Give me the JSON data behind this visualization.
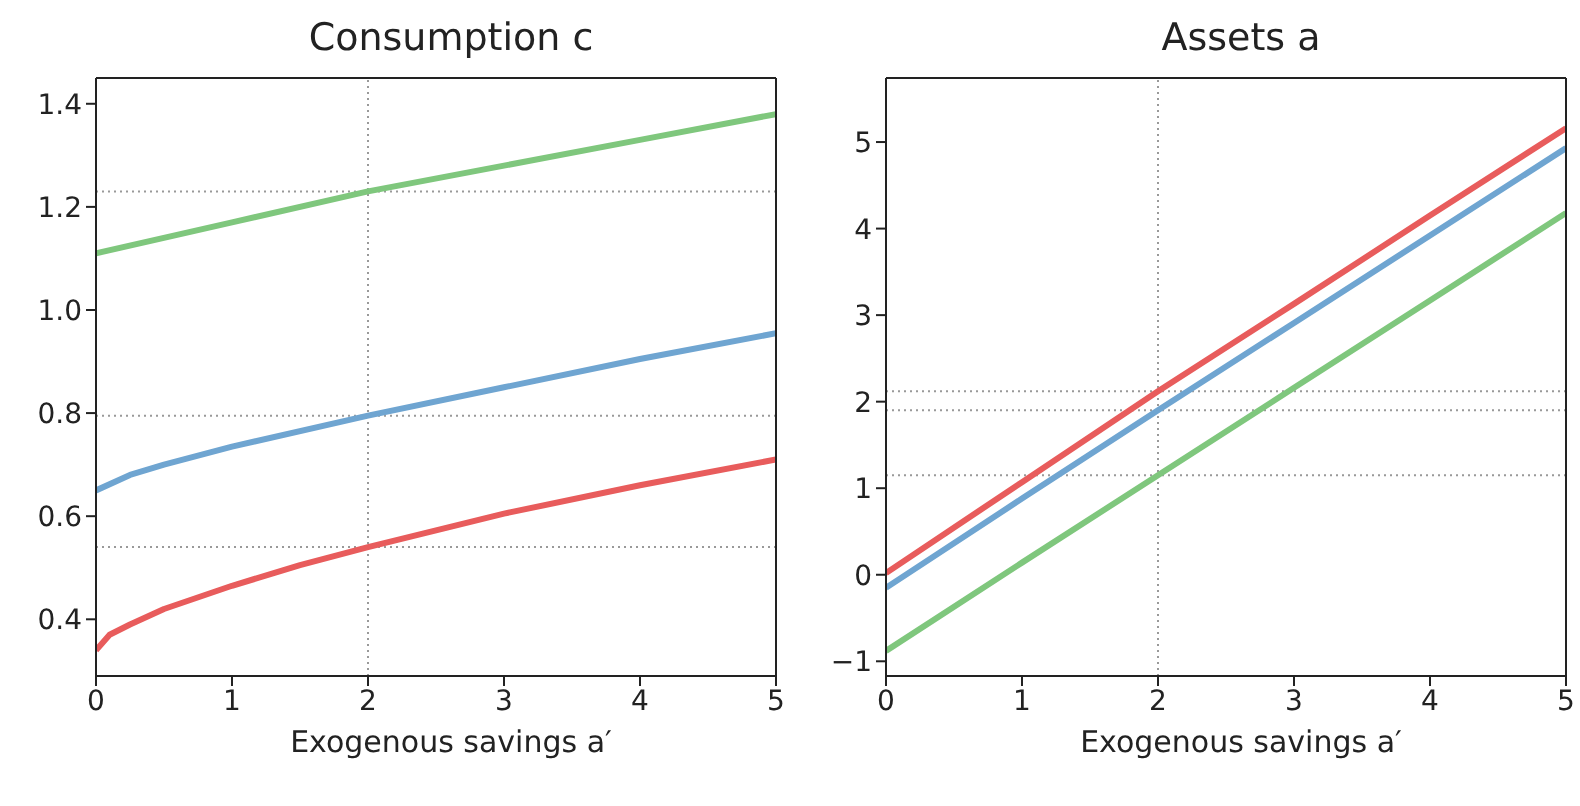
{
  "chart_data": [
    {
      "type": "line",
      "title": "Consumption c",
      "xlabel": "Exogenous savings a′",
      "xlim": [
        0,
        5
      ],
      "xticks": [
        0,
        1,
        2,
        3,
        4,
        5
      ],
      "ylim": [
        0.29,
        1.45
      ],
      "yticks": [
        {
          "value": 0.4,
          "label": "0.4"
        },
        {
          "value": 0.6,
          "label": "0.6"
        },
        {
          "value": 0.8,
          "label": "0.8"
        },
        {
          "value": 1.0,
          "label": "1.0"
        },
        {
          "value": 1.2,
          "label": "1.2"
        },
        {
          "value": 1.4,
          "label": "1.4"
        }
      ],
      "grid": false,
      "marker": "none",
      "line_style": "solid",
      "series": [
        {
          "color": "#7fc77d",
          "x": [
            0,
            1,
            2,
            3,
            4,
            5
          ],
          "values": [
            1.11,
            1.17,
            1.23,
            1.28,
            1.33,
            1.38
          ]
        },
        {
          "color": "#6fa5d1",
          "x": [
            0,
            0.25,
            0.5,
            1,
            2,
            3,
            4,
            5
          ],
          "values": [
            0.65,
            0.68,
            0.7,
            0.735,
            0.795,
            0.85,
            0.905,
            0.955
          ]
        },
        {
          "color": "#e85c5c",
          "x": [
            0,
            0.1,
            0.25,
            0.5,
            1,
            1.5,
            2,
            3,
            4,
            5
          ],
          "values": [
            0.34,
            0.37,
            0.39,
            0.42,
            0.465,
            0.505,
            0.54,
            0.605,
            0.66,
            0.71
          ]
        }
      ],
      "ref_lines": [
        {
          "axis": "x",
          "value": 2,
          "color": "#999999",
          "line_style": "dotted"
        },
        {
          "axis": "y",
          "value": 1.23,
          "color": "#999999",
          "line_style": "dotted"
        },
        {
          "axis": "y",
          "value": 0.795,
          "color": "#999999",
          "line_style": "dotted"
        },
        {
          "axis": "y",
          "value": 0.54,
          "color": "#999999",
          "line_style": "dotted"
        }
      ]
    },
    {
      "type": "line",
      "title": "Assets a",
      "xlabel": "Exogenous savings a′",
      "xlim": [
        0,
        5
      ],
      "xticks": [
        0,
        1,
        2,
        3,
        4,
        5
      ],
      "ylim": [
        -1.17,
        5.74
      ],
      "yticks": [
        {
          "value": -1,
          "label": "−1"
        },
        0,
        1,
        2,
        3,
        4,
        5
      ],
      "grid": false,
      "marker": "none",
      "line_style": "solid",
      "series": [
        {
          "color": "#e85c5c",
          "x": [
            0,
            1,
            2,
            3,
            4,
            5
          ],
          "values": [
            0.02,
            1.07,
            2.12,
            3.13,
            4.15,
            5.16
          ]
        },
        {
          "color": "#6fa5d1",
          "x": [
            0,
            1,
            2,
            3,
            4,
            5
          ],
          "values": [
            -0.15,
            0.88,
            1.9,
            2.91,
            3.92,
            4.93
          ]
        },
        {
          "color": "#7fc77d",
          "x": [
            0,
            1,
            2,
            3,
            4,
            5
          ],
          "values": [
            -0.88,
            0.14,
            1.15,
            2.16,
            3.17,
            4.18
          ]
        }
      ],
      "ref_lines": [
        {
          "axis": "x",
          "value": 2,
          "color": "#999999",
          "line_style": "dotted"
        },
        {
          "axis": "y",
          "value": 2.12,
          "color": "#999999",
          "line_style": "dotted"
        },
        {
          "axis": "y",
          "value": 1.9,
          "color": "#999999",
          "line_style": "dotted"
        },
        {
          "axis": "y",
          "value": 1.15,
          "color": "#999999",
          "line_style": "dotted"
        }
      ]
    }
  ]
}
